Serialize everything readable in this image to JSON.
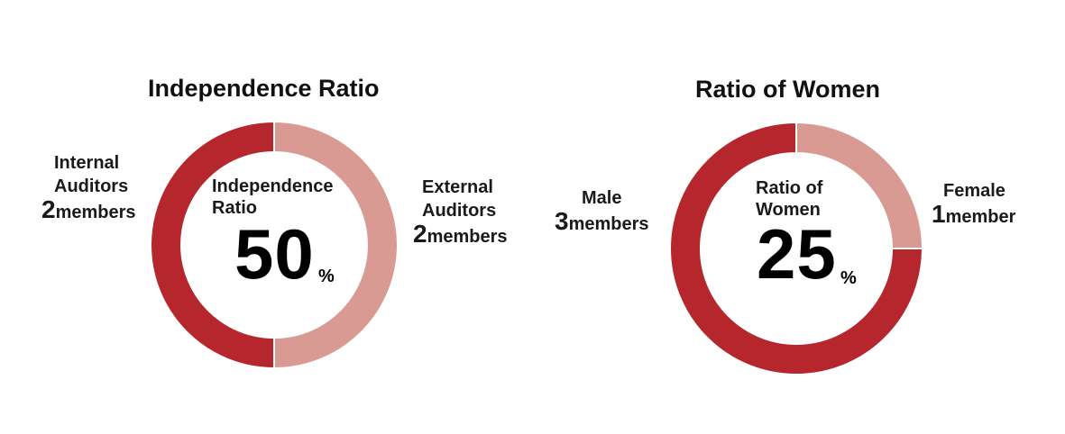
{
  "colors": {
    "primary": "#b5272d",
    "secondary": "#d99a93"
  },
  "chart_data": [
    {
      "type": "pie",
      "title": "Independence Ratio",
      "center_label": [
        "Independence",
        "Ratio"
      ],
      "center_value": "50",
      "center_unit": "%",
      "slices": [
        {
          "name": "External Auditors",
          "value": 2,
          "label_lines": [
            "External",
            "Auditors"
          ],
          "count": "2",
          "unit": "members"
        },
        {
          "name": "Internal Auditors",
          "value": 2,
          "label_lines": [
            "Internal",
            "Auditors"
          ],
          "count": "2",
          "unit": "members"
        }
      ]
    },
    {
      "type": "pie",
      "title": "Ratio of Women",
      "center_label": [
        "Ratio of",
        "Women"
      ],
      "center_value": "25",
      "center_unit": "%",
      "slices": [
        {
          "name": "Female",
          "value": 1,
          "label_lines": [
            "Female"
          ],
          "count": "1",
          "unit": "member"
        },
        {
          "name": "Male",
          "value": 3,
          "label_lines": [
            "Male"
          ],
          "count": "3",
          "unit": "members"
        }
      ]
    }
  ]
}
